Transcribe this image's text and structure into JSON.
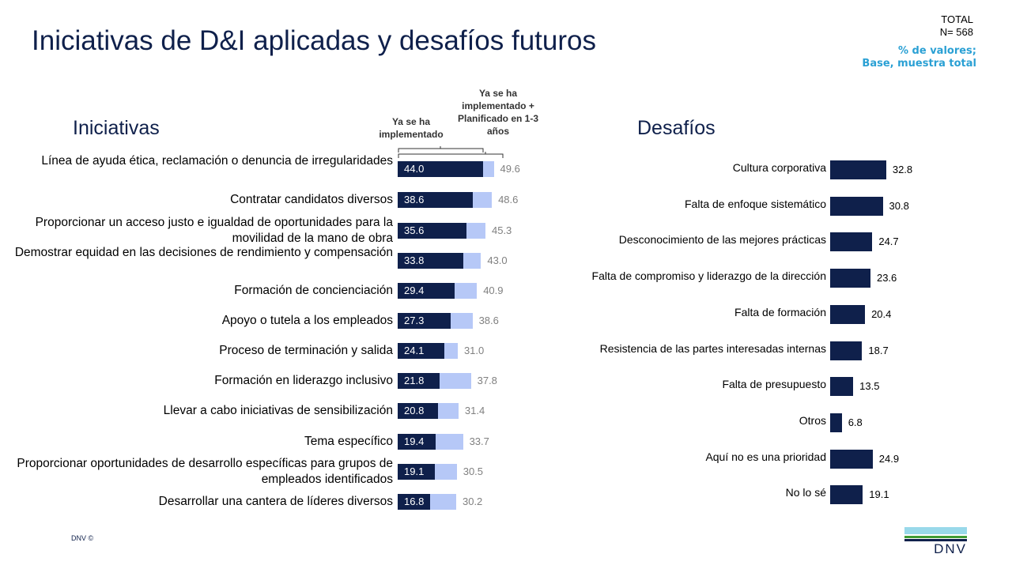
{
  "title": "Iniciativas de D&I aplicadas y desafíos futuros",
  "total": {
    "line1": "TOTAL",
    "line2": "N= 568"
  },
  "note": {
    "line1": "% de valores;",
    "line2": "Base, muestra total"
  },
  "footer": "DNV ©",
  "logo_text": "DNV",
  "colors": {
    "dark": "#0f204b",
    "light": "#b6c8f7",
    "accent": "#2aa0d4"
  },
  "chart_data": [
    {
      "type": "bar",
      "title": "Iniciativas",
      "orientation": "horizontal",
      "legend": [
        "Ya se ha implementado",
        "Ya se ha implementado + Planificado en 1-3 años"
      ],
      "categories": [
        "Línea de ayuda ética, reclamación o denuncia de irregularidades",
        "Contratar candidatos diversos",
        "Proporcionar un acceso justo e igualdad de oportunidades para la movilidad de la mano de obra",
        "Demostrar equidad en las decisiones de rendimiento y compensación",
        "Formación de concienciación",
        "Apoyo o tutela a los empleados",
        "Proceso de terminación y salida",
        "Formación en liderazgo inclusivo",
        "Llevar a cabo iniciativas de sensibilización",
        "Tema específico",
        "Proporcionar oportunidades de desarrollo específicas para grupos de empleados identificados",
        "Desarrollar una cantera de líderes diversos"
      ],
      "series": [
        {
          "name": "Ya se ha implementado",
          "values": [
            44.0,
            38.6,
            35.6,
            33.8,
            29.4,
            27.3,
            24.1,
            21.8,
            20.8,
            19.4,
            19.1,
            16.8
          ]
        },
        {
          "name": "Ya se ha implementado + Planificado en 1-3 años",
          "values": [
            49.6,
            48.6,
            45.3,
            43.0,
            40.9,
            38.6,
            31.0,
            37.8,
            31.4,
            33.7,
            30.5,
            30.2
          ]
        }
      ]
    },
    {
      "type": "bar",
      "title": "Desafíos",
      "orientation": "horizontal",
      "categories": [
        "Cultura corporativa",
        "Falta de enfoque sistemático",
        "Desconocimiento de las mejores prácticas",
        "Falta de compromiso y liderazgo de la dirección",
        "Falta de formación",
        "Resistencia de las partes interesadas internas",
        "Falta de presupuesto",
        "Otros",
        "Aquí no es una prioridad",
        "No lo sé"
      ],
      "values": [
        32.8,
        30.8,
        24.7,
        23.6,
        20.4,
        18.7,
        13.5,
        6.8,
        24.9,
        19.1
      ]
    }
  ]
}
